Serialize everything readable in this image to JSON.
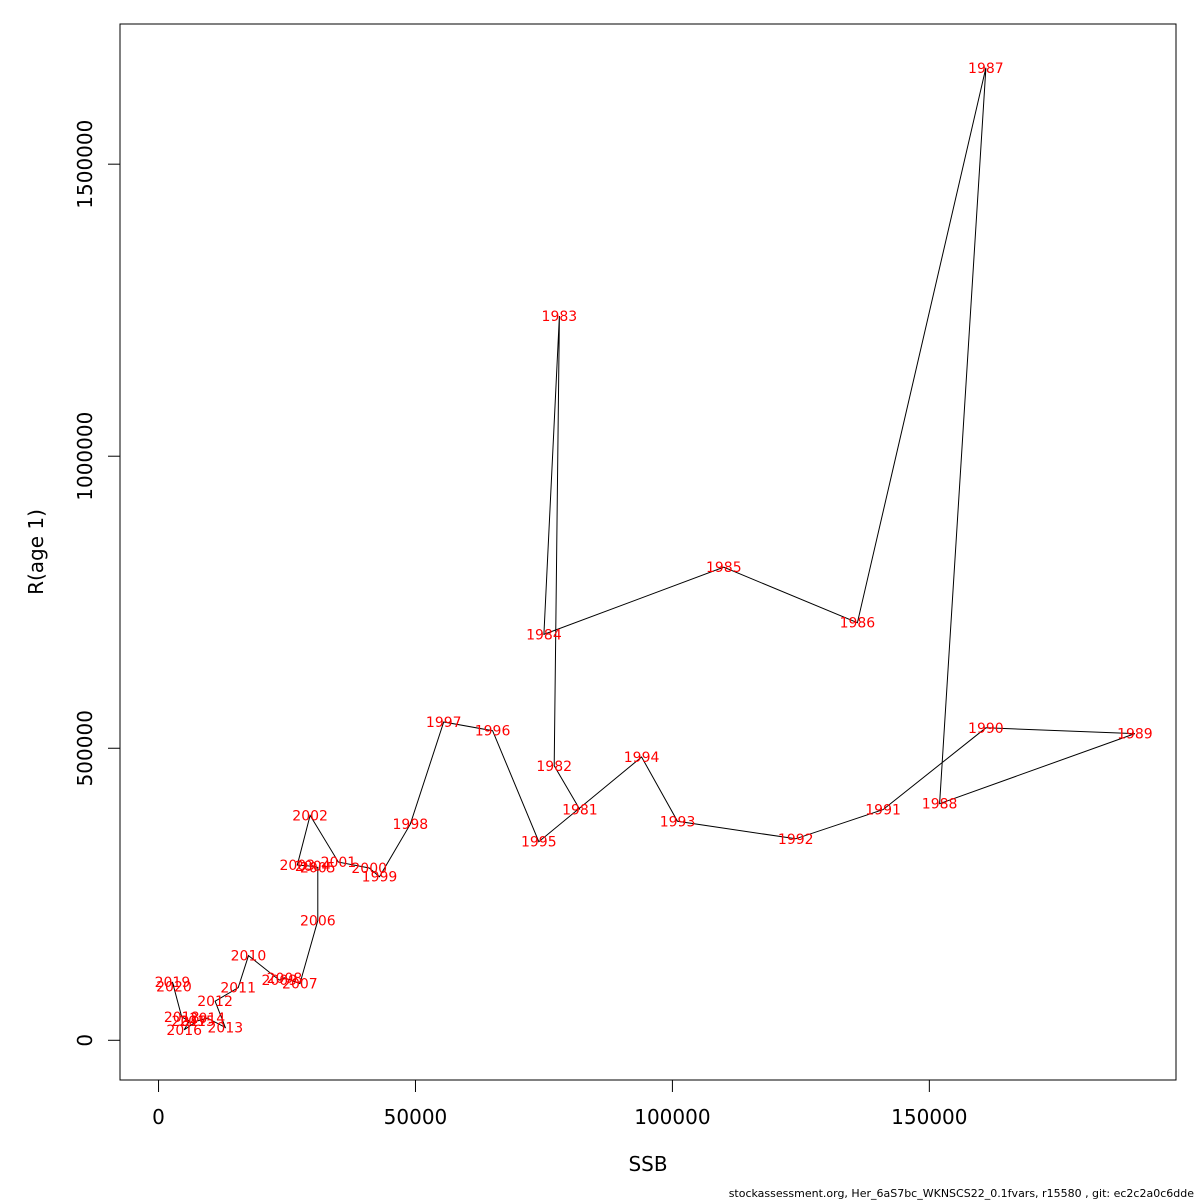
{
  "chart_data": {
    "type": "scatter",
    "xlabel": "SSB",
    "ylabel": "R(age 1)",
    "xlim": [
      -7500,
      198000
    ],
    "ylim": [
      -68000,
      1740000
    ],
    "x_ticks": [
      0,
      50000,
      100000,
      150000
    ],
    "y_ticks": [
      0,
      500000,
      1000000,
      1500000
    ],
    "grid": false,
    "line_color": "#000000",
    "label_color": "#ff0000",
    "series": [
      {
        "points": [
          {
            "label": "1981",
            "x": 82000,
            "y": 395000
          },
          {
            "label": "1982",
            "x": 77000,
            "y": 470000
          },
          {
            "label": "1983",
            "x": 78000,
            "y": 1240000
          },
          {
            "label": "1984",
            "x": 75000,
            "y": 695000
          },
          {
            "label": "1985",
            "x": 110000,
            "y": 810000
          },
          {
            "label": "1986",
            "x": 136000,
            "y": 715000
          },
          {
            "label": "1987",
            "x": 161000,
            "y": 1665000
          },
          {
            "label": "1988",
            "x": 152000,
            "y": 405000
          },
          {
            "label": "1989",
            "x": 190000,
            "y": 525000
          },
          {
            "label": "1990",
            "x": 161000,
            "y": 535000
          },
          {
            "label": "1991",
            "x": 141000,
            "y": 395000
          },
          {
            "label": "1992",
            "x": 124000,
            "y": 345000
          },
          {
            "label": "1993",
            "x": 101000,
            "y": 375000
          },
          {
            "label": "1994",
            "x": 94000,
            "y": 485000
          },
          {
            "label": "1995",
            "x": 74000,
            "y": 340000
          },
          {
            "label": "1996",
            "x": 65000,
            "y": 530000
          },
          {
            "label": "1997",
            "x": 55500,
            "y": 545000
          },
          {
            "label": "1998",
            "x": 49000,
            "y": 370000
          },
          {
            "label": "1999",
            "x": 43000,
            "y": 280000
          },
          {
            "label": "2000",
            "x": 41000,
            "y": 295000
          },
          {
            "label": "2001",
            "x": 35000,
            "y": 305000
          },
          {
            "label": "2002",
            "x": 29500,
            "y": 385000
          },
          {
            "label": "2003",
            "x": 27000,
            "y": 300000
          },
          {
            "label": "2004",
            "x": 30000,
            "y": 298000
          },
          {
            "label": "2005",
            "x": 31000,
            "y": 296000
          },
          {
            "label": "2006",
            "x": 31000,
            "y": 205000
          },
          {
            "label": "2007",
            "x": 27500,
            "y": 97000
          },
          {
            "label": "2008",
            "x": 24500,
            "y": 107000
          },
          {
            "label": "2009",
            "x": 23500,
            "y": 103000
          },
          {
            "label": "2010",
            "x": 17500,
            "y": 145000
          },
          {
            "label": "2011",
            "x": 15500,
            "y": 90000
          },
          {
            "label": "2012",
            "x": 11000,
            "y": 67000
          },
          {
            "label": "2013",
            "x": 13000,
            "y": 22000
          },
          {
            "label": "2014",
            "x": 9500,
            "y": 38000
          },
          {
            "label": "2015",
            "x": 7500,
            "y": 33000
          },
          {
            "label": "2016",
            "x": 5000,
            "y": 18000
          },
          {
            "label": "2017",
            "x": 6000,
            "y": 33000
          },
          {
            "label": "2018",
            "x": 4500,
            "y": 40000
          },
          {
            "label": "2019",
            "x": 2700,
            "y": 100000
          },
          {
            "label": "2020",
            "x": 3000,
            "y": 92000
          }
        ]
      }
    ]
  },
  "footer": {
    "text": "stockassessment.org, Her_6aS7bc_WKNSCS22_0.1fvars, r15580 , git: ec2c2a0c6dde"
  }
}
